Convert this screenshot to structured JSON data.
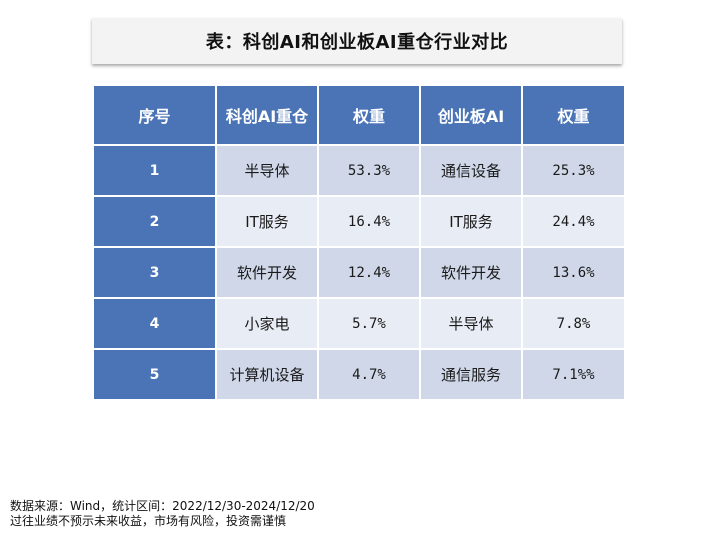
{
  "title": "表：科创AI和创业板AI重仓行业对比",
  "table": {
    "headers": [
      "序号",
      "科创AI重仓",
      "权重",
      "创业板AI",
      "权重"
    ],
    "rows": [
      [
        "1",
        "半导体",
        "53.3%",
        "通信设备",
        "25.3%"
      ],
      [
        "2",
        "IT服务",
        "16.4%",
        "IT服务",
        "24.4%"
      ],
      [
        "3",
        "软件开发",
        "12.4%",
        "软件开发",
        "13.6%"
      ],
      [
        "4",
        "小家电",
        "5.7%",
        "半导体",
        "7.8%"
      ],
      [
        "5",
        "计算机设备",
        "4.7%",
        "通信服务",
        "7.1%%"
      ]
    ]
  },
  "footnotes": {
    "source": "数据来源：Wind，统计区间：2022/12/30-2024/12/20",
    "disclaimer": "过往业绩不预示未来收益，市场有风险，投资需谨慎"
  },
  "colors": {
    "header_bg": "#4a74b6",
    "row_dark": "#cfd7e8",
    "row_light": "#e8ecf4",
    "title_bg": "#f3f3f3"
  }
}
